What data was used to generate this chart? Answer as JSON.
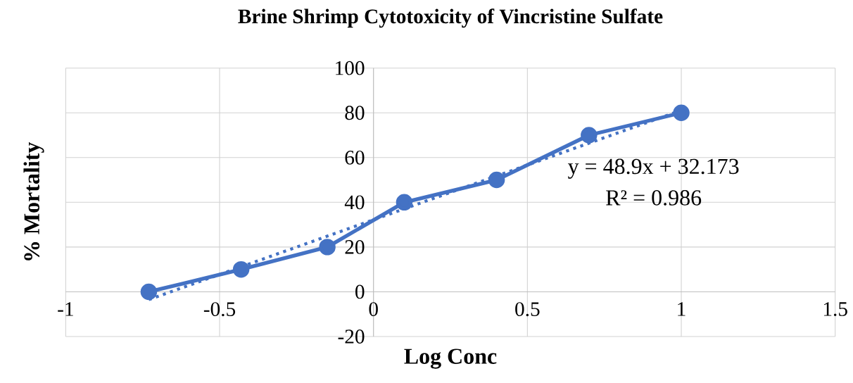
{
  "chart_data": {
    "type": "line",
    "title": "Brine Shrimp Cytotoxicity of Vincristine Sulfate",
    "xlabel": "Log Conc",
    "ylabel": "% Mortality",
    "series": [
      {
        "x": [
          -0.73,
          -0.43,
          -0.15,
          0.1,
          0.4,
          0.7,
          1.0
        ],
        "values": [
          0,
          10,
          20,
          40,
          50,
          70,
          80
        ],
        "color": "#4472c4",
        "marker": "circle",
        "line_style": "solid"
      },
      {
        "x": [
          -0.73,
          1.0
        ],
        "values": [
          -3.5,
          81.1
        ],
        "color": "#4472c4",
        "marker": "none",
        "line_style": "dotted"
      }
    ],
    "annotations": [
      "y = 48.9x + 32.173",
      "R² = 0.986"
    ],
    "xlim": [
      -1,
      1.5
    ],
    "xticks": [
      -1,
      -0.5,
      0,
      0.5,
      1,
      1.5
    ],
    "ylim": [
      -20,
      100
    ],
    "yticks": [
      -20,
      0,
      20,
      40,
      60,
      80,
      100
    ],
    "grid": true
  }
}
